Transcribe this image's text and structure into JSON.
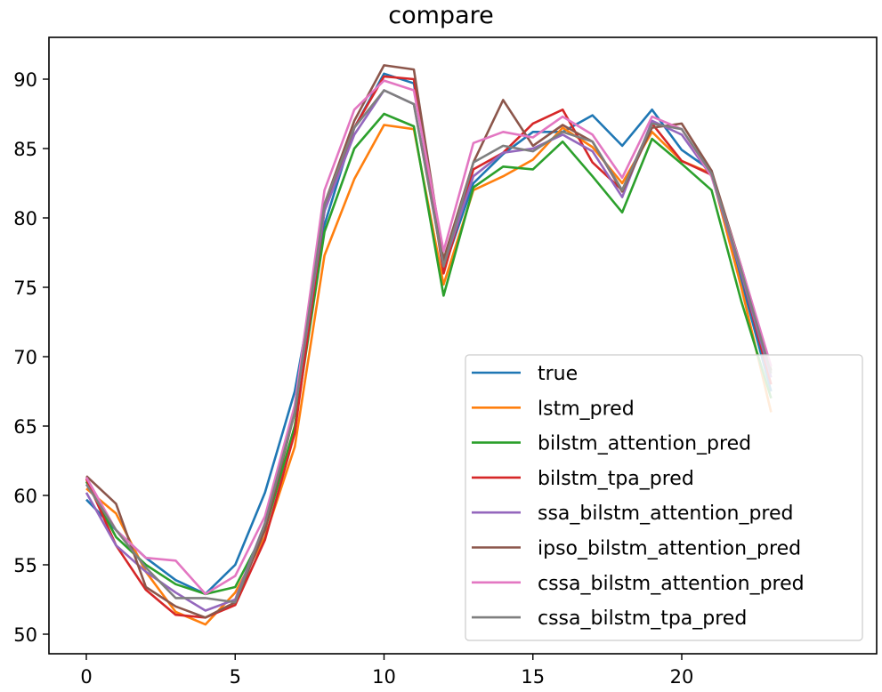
{
  "chart_data": {
    "type": "line",
    "title": "compare",
    "xlabel": "",
    "ylabel": "",
    "xlim": [
      -1.2,
      24.2
    ],
    "ylim": [
      48.5,
      93
    ],
    "x_ticks": [
      0,
      5,
      10,
      15,
      20
    ],
    "y_ticks": [
      50,
      55,
      60,
      65,
      70,
      75,
      80,
      85,
      90
    ],
    "grid": false,
    "legend_position": "lower right",
    "x": [
      0,
      1,
      2,
      3,
      4,
      5,
      6,
      7,
      8,
      9,
      10,
      11,
      12,
      13,
      14,
      15,
      16,
      17,
      18,
      19,
      20,
      21,
      22,
      23
    ],
    "series": [
      {
        "name": "true",
        "color": "#1f77b4",
        "values": [
          59.7,
          57.5,
          55.5,
          53.9,
          52.9,
          55.0,
          60.2,
          67.5,
          79.5,
          86.5,
          90.4,
          89.7,
          76.3,
          82.5,
          84.6,
          86.2,
          86.2,
          87.4,
          85.2,
          87.8,
          84.9,
          83.4,
          75.5,
          67.5
        ]
      },
      {
        "name": "lstm_pred",
        "color": "#ff7f0e",
        "values": [
          60.5,
          58.7,
          54.5,
          51.6,
          50.7,
          53.0,
          57.0,
          63.5,
          77.3,
          82.8,
          86.7,
          86.4,
          75.2,
          82.0,
          83.0,
          84.2,
          86.5,
          85.1,
          82.5,
          86.2,
          84.1,
          83.2,
          75.0,
          66.0
        ]
      },
      {
        "name": "bilstm_attention_pred",
        "color": "#2ca02c",
        "values": [
          61.0,
          57.0,
          55.0,
          53.6,
          52.9,
          53.4,
          57.5,
          65.0,
          79.0,
          85.0,
          87.5,
          86.6,
          74.4,
          82.2,
          83.7,
          83.5,
          85.5,
          83.0,
          80.4,
          85.7,
          83.9,
          82.0,
          74.0,
          67.0
        ]
      },
      {
        "name": "bilstm_tpa_pred",
        "color": "#d62728",
        "values": [
          61.2,
          56.4,
          53.2,
          51.4,
          51.2,
          52.1,
          56.8,
          64.5,
          80.5,
          86.5,
          90.2,
          90.0,
          76.0,
          83.5,
          84.7,
          86.8,
          87.8,
          84.0,
          82.0,
          86.8,
          84.1,
          83.1,
          76.0,
          68.0
        ]
      },
      {
        "name": "ssa_bilstm_attention_pred",
        "color": "#9467bd",
        "values": [
          60.2,
          56.4,
          54.5,
          53.0,
          51.7,
          52.5,
          58.0,
          66.0,
          80.5,
          86.0,
          89.2,
          88.2,
          76.6,
          83.0,
          84.7,
          85.0,
          86.0,
          84.8,
          81.5,
          87.0,
          86.0,
          83.0,
          76.0,
          68.5
        ]
      },
      {
        "name": "ipso_bilstm_attention_pred",
        "color": "#8c564b",
        "values": [
          61.4,
          59.4,
          53.4,
          52.0,
          51.2,
          52.3,
          57.5,
          66.0,
          81.0,
          87.0,
          91.0,
          90.7,
          77.0,
          84.0,
          88.5,
          85.2,
          86.7,
          85.5,
          81.9,
          86.5,
          86.8,
          83.4,
          76.5,
          69.0
        ]
      },
      {
        "name": "cssa_bilstm_attention_pred",
        "color": "#e377c2",
        "values": [
          61.3,
          57.5,
          55.5,
          55.3,
          52.9,
          54.2,
          58.5,
          66.5,
          82.0,
          87.8,
          89.9,
          89.2,
          77.6,
          85.4,
          86.2,
          85.8,
          87.3,
          86.0,
          82.9,
          87.3,
          86.4,
          83.0,
          76.5,
          69.3
        ]
      },
      {
        "name": "cssa_bilstm_tpa_pred",
        "color": "#7f7f7f",
        "values": [
          60.8,
          57.5,
          54.8,
          52.6,
          52.6,
          52.3,
          58.0,
          66.0,
          81.0,
          86.5,
          89.2,
          88.2,
          76.5,
          84.0,
          85.2,
          84.8,
          86.2,
          85.5,
          82.0,
          86.8,
          86.4,
          83.2,
          76.2,
          68.8
        ]
      }
    ]
  }
}
